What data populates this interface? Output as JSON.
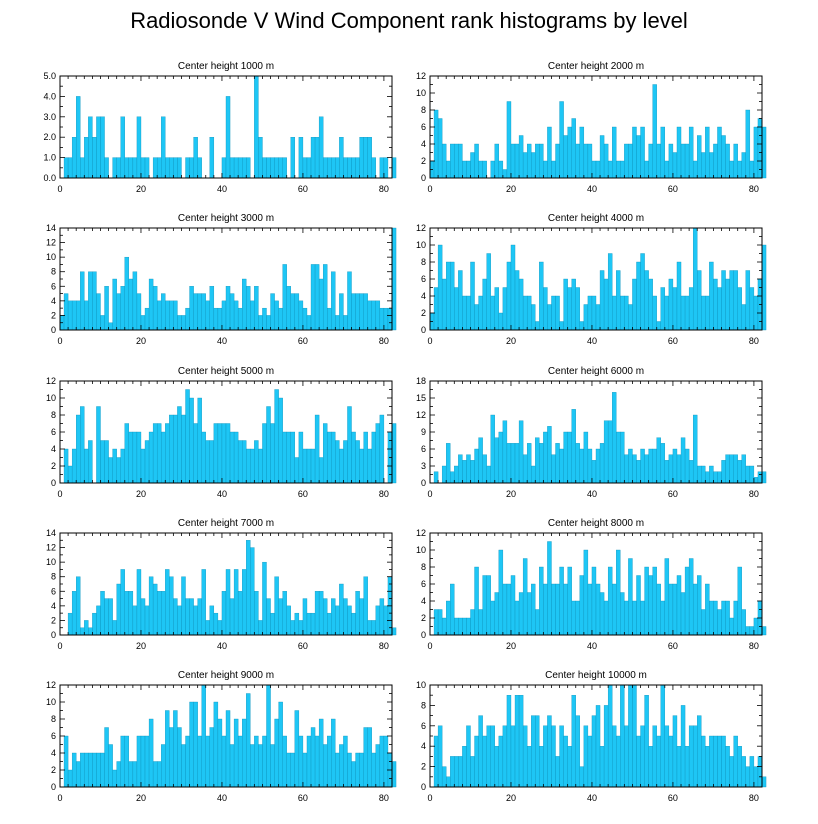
{
  "title": "Radiosonde V Wind Component rank histograms by level",
  "colors": {
    "bar": "#1ec6f5",
    "bar_edge": "#0a8fb8",
    "axis": "#000000"
  },
  "chart_data": [
    {
      "type": "bar",
      "title": "Center height 1000 m",
      "xlabel": "",
      "ylabel": "",
      "xlim": [
        0,
        82
      ],
      "ylim": [
        0,
        5.0
      ],
      "xticks": [
        0,
        20,
        40,
        60,
        80
      ],
      "yticks": [
        0.0,
        1.0,
        2.0,
        3.0,
        4.0,
        5.0
      ],
      "ytick_labels": [
        "0.0",
        "1.0",
        "2.0",
        "3.0",
        "4.0",
        "5.0"
      ],
      "values": [
        0,
        1,
        1,
        2,
        4,
        1,
        2,
        3,
        2,
        3,
        3,
        1,
        0,
        1,
        1,
        3,
        1,
        1,
        1,
        3,
        1,
        1,
        0,
        1,
        1,
        3,
        1,
        1,
        1,
        1,
        0,
        1,
        1,
        2,
        1,
        0,
        0,
        2,
        0,
        0,
        1,
        4,
        1,
        1,
        1,
        1,
        1,
        0,
        5,
        2,
        1,
        1,
        1,
        1,
        1,
        1,
        0,
        2,
        0,
        2,
        1,
        1,
        2,
        2,
        3,
        1,
        1,
        1,
        1,
        2,
        1,
        1,
        1,
        1,
        2,
        2,
        2,
        1,
        0,
        1,
        1,
        0,
        1
      ]
    },
    {
      "type": "bar",
      "title": "Center height 2000 m",
      "xlabel": "",
      "ylabel": "",
      "xlim": [
        0,
        82
      ],
      "ylim": [
        0,
        12
      ],
      "xticks": [
        0,
        20,
        40,
        60,
        80
      ],
      "yticks": [
        0,
        2,
        4,
        6,
        8,
        10,
        12
      ],
      "ytick_labels": [
        "0",
        "2",
        "4",
        "6",
        "8",
        "10",
        "12"
      ],
      "values": [
        2,
        8,
        7,
        4,
        2,
        4,
        4,
        4,
        2,
        2,
        3,
        4,
        2,
        2,
        0,
        2,
        4,
        2,
        1,
        9,
        4,
        4,
        5,
        3,
        4,
        3,
        4,
        4,
        2,
        6,
        2,
        4,
        9,
        5,
        6,
        7,
        4,
        6,
        4,
        4,
        2,
        2,
        5,
        4,
        2,
        6,
        2,
        2,
        4,
        4,
        6,
        5,
        6,
        2,
        4,
        11,
        4,
        6,
        2,
        4,
        3,
        6,
        4,
        4,
        6,
        2,
        5,
        3,
        6,
        3,
        4,
        6,
        5,
        4,
        2,
        4,
        2,
        3,
        8,
        2,
        6,
        7,
        6
      ]
    },
    {
      "type": "bar",
      "title": "Center height 3000 m",
      "xlabel": "",
      "ylabel": "",
      "xlim": [
        0,
        82
      ],
      "ylim": [
        0,
        14
      ],
      "xticks": [
        0,
        20,
        40,
        60,
        80
      ],
      "yticks": [
        0,
        2,
        4,
        6,
        8,
        10,
        12,
        14
      ],
      "ytick_labels": [
        "0",
        "2",
        "4",
        "6",
        "8",
        "10",
        "12",
        "14"
      ],
      "values": [
        2,
        5,
        4,
        4,
        4,
        8,
        4,
        8,
        8,
        5,
        2,
        6,
        1,
        7,
        5,
        6,
        10,
        7,
        8,
        5,
        2,
        3,
        7,
        6,
        4,
        5,
        4,
        4,
        4,
        2,
        2,
        3,
        6,
        5,
        5,
        5,
        4,
        6,
        3,
        3,
        4,
        6,
        5,
        4,
        3,
        7,
        6,
        4,
        6,
        2,
        3,
        2,
        5,
        4,
        3,
        9,
        6,
        5,
        5,
        4,
        3,
        2,
        9,
        9,
        7,
        9,
        3,
        8,
        2,
        5,
        2,
        8,
        5,
        5,
        5,
        5,
        4,
        4,
        4,
        3,
        3,
        3,
        14
      ]
    },
    {
      "type": "bar",
      "title": "Center height 4000 m",
      "xlabel": "",
      "ylabel": "",
      "xlim": [
        0,
        82
      ],
      "ylim": [
        0,
        12
      ],
      "xticks": [
        0,
        20,
        40,
        60,
        80
      ],
      "yticks": [
        0,
        2,
        4,
        6,
        8,
        10,
        12
      ],
      "ytick_labels": [
        "0",
        "2",
        "4",
        "6",
        "8",
        "10",
        "12"
      ],
      "values": [
        2,
        5,
        10,
        6,
        8,
        8,
        5,
        7,
        4,
        4,
        8,
        3,
        4,
        6,
        9,
        4,
        5,
        2,
        5,
        8,
        10,
        7,
        6,
        4,
        4,
        3,
        1,
        8,
        5,
        3,
        4,
        4,
        1,
        6,
        5,
        6,
        5,
        1,
        3,
        4,
        4,
        3,
        7,
        6,
        9,
        4,
        7,
        4,
        4,
        3,
        6,
        8,
        9,
        7,
        6,
        4,
        1,
        5,
        4,
        6,
        5,
        8,
        4,
        4,
        5,
        12,
        7,
        4,
        4,
        8,
        6,
        5,
        7,
        6,
        7,
        7,
        5,
        3,
        7,
        5,
        4,
        6,
        10
      ]
    },
    {
      "type": "bar",
      "title": "Center height 5000 m",
      "xlabel": "",
      "ylabel": "",
      "xlim": [
        0,
        82
      ],
      "ylim": [
        0,
        12
      ],
      "xticks": [
        0,
        20,
        40,
        60,
        80
      ],
      "yticks": [
        0,
        2,
        4,
        6,
        8,
        10,
        12
      ],
      "ytick_labels": [
        "0",
        "2",
        "4",
        "6",
        "8",
        "10",
        "12"
      ],
      "values": [
        0,
        4,
        2,
        4,
        8,
        9,
        4,
        5,
        0,
        9,
        5,
        5,
        3,
        4,
        3,
        4,
        7,
        6,
        6,
        6,
        4,
        5,
        6,
        7,
        7,
        6,
        7,
        8,
        8,
        9,
        8,
        11,
        10,
        7,
        10,
        6,
        5,
        5,
        7,
        7,
        7,
        7,
        6,
        6,
        5,
        5,
        4,
        4,
        5,
        4,
        7,
        9,
        7,
        11,
        10,
        6,
        6,
        6,
        3,
        6,
        4,
        4,
        4,
        8,
        3,
        7,
        6,
        6,
        5,
        4,
        5,
        9,
        6,
        5,
        4,
        6,
        4,
        6,
        7,
        8,
        0,
        6,
        7
      ]
    },
    {
      "type": "bar",
      "title": "Center height 6000 m",
      "xlabel": "",
      "ylabel": "",
      "xlim": [
        0,
        82
      ],
      "ylim": [
        0,
        18
      ],
      "xticks": [
        0,
        20,
        40,
        60,
        80
      ],
      "yticks": [
        0,
        3,
        6,
        9,
        12,
        15,
        18
      ],
      "ytick_labels": [
        "0",
        "3",
        "6",
        "9",
        "12",
        "15",
        "18"
      ],
      "values": [
        0,
        2,
        0,
        3,
        7,
        2,
        3,
        5,
        4,
        5,
        4,
        6,
        8,
        5,
        3,
        12,
        8,
        9,
        11,
        7,
        7,
        7,
        11,
        5,
        7,
        3,
        8,
        7,
        9,
        10,
        5,
        7,
        6,
        9,
        9,
        13,
        7,
        6,
        9,
        6,
        4,
        6,
        7,
        11,
        11,
        16,
        9,
        9,
        5,
        6,
        5,
        4,
        6,
        5,
        6,
        6,
        8,
        7,
        4,
        5,
        6,
        5,
        8,
        6,
        4,
        12,
        3,
        3,
        2,
        3,
        2,
        2,
        4,
        5,
        5,
        5,
        4,
        5,
        3,
        3,
        1,
        2,
        2
      ]
    },
    {
      "type": "bar",
      "title": "Center height 7000 m",
      "xlabel": "",
      "ylabel": "",
      "xlim": [
        0,
        82
      ],
      "ylim": [
        0,
        14
      ],
      "xticks": [
        0,
        20,
        40,
        60,
        80
      ],
      "yticks": [
        0,
        2,
        4,
        6,
        8,
        10,
        12,
        14
      ],
      "ytick_labels": [
        "0",
        "2",
        "4",
        "6",
        "8",
        "10",
        "12",
        "14"
      ],
      "values": [
        0,
        0,
        3,
        6,
        8,
        1,
        2,
        1,
        3,
        4,
        6,
        5,
        5,
        2,
        7,
        9,
        6,
        6,
        4,
        9,
        5,
        4,
        8,
        7,
        6,
        6,
        9,
        8,
        5,
        4,
        8,
        5,
        5,
        4,
        5,
        9,
        2,
        4,
        3,
        2,
        6,
        9,
        5,
        9,
        6,
        9,
        13,
        12,
        6,
        2,
        10,
        5,
        3,
        8,
        5,
        6,
        4,
        2,
        3,
        2,
        5,
        3,
        3,
        6,
        6,
        5,
        3,
        5,
        4,
        7,
        5,
        4,
        3,
        6,
        5,
        8,
        2,
        2,
        4,
        5,
        4,
        8,
        1
      ]
    },
    {
      "type": "bar",
      "title": "Center height 8000 m",
      "xlabel": "",
      "ylabel": "",
      "xlim": [
        0,
        82
      ],
      "ylim": [
        0,
        12
      ],
      "xticks": [
        0,
        20,
        40,
        60,
        80
      ],
      "yticks": [
        0,
        2,
        4,
        6,
        8,
        10,
        12
      ],
      "ytick_labels": [
        "0",
        "2",
        "4",
        "6",
        "8",
        "10",
        "12"
      ],
      "values": [
        0,
        3,
        3,
        2,
        4,
        6,
        2,
        2,
        2,
        2,
        3,
        8,
        3,
        7,
        7,
        4,
        5,
        10,
        6,
        6,
        7,
        4,
        5,
        9,
        5,
        6,
        3,
        8,
        6,
        11,
        6,
        6,
        8,
        6,
        8,
        4,
        4,
        7,
        10,
        6,
        8,
        6,
        5,
        4,
        8,
        6,
        10,
        5,
        4,
        9,
        4,
        7,
        4,
        8,
        7,
        8,
        6,
        4,
        9,
        6,
        6,
        7,
        5,
        8,
        9,
        6,
        7,
        3,
        6,
        4,
        4,
        3,
        4,
        4,
        2,
        4,
        8,
        3,
        1,
        1,
        2,
        4,
        1
      ]
    },
    {
      "type": "bar",
      "title": "Center height 9000 m",
      "xlabel": "",
      "ylabel": "",
      "xlim": [
        0,
        82
      ],
      "ylim": [
        0,
        12
      ],
      "xticks": [
        0,
        20,
        40,
        60,
        80
      ],
      "yticks": [
        0,
        2,
        4,
        6,
        8,
        10,
        12
      ],
      "ytick_labels": [
        "0",
        "2",
        "4",
        "6",
        "8",
        "10",
        "12"
      ],
      "values": [
        0,
        6,
        2,
        4,
        3,
        4,
        4,
        4,
        4,
        4,
        4,
        7,
        5,
        2,
        3,
        6,
        6,
        3,
        3,
        6,
        6,
        6,
        8,
        3,
        3,
        5,
        9,
        7,
        9,
        7,
        5,
        6,
        10,
        10,
        6,
        12,
        6,
        7,
        10,
        8,
        6,
        9,
        5,
        8,
        6,
        8,
        11,
        5,
        6,
        5,
        6,
        12,
        5,
        8,
        10,
        6,
        4,
        4,
        9,
        6,
        4,
        6,
        7,
        6,
        8,
        5,
        6,
        8,
        4,
        5,
        6,
        4,
        3,
        4,
        4,
        7,
        7,
        4,
        5,
        6,
        6,
        4,
        3
      ]
    },
    {
      "type": "bar",
      "title": "Center height 10000 m",
      "xlabel": "",
      "ylabel": "",
      "xlim": [
        0,
        82
      ],
      "ylim": [
        0,
        10
      ],
      "xticks": [
        0,
        20,
        40,
        60,
        80
      ],
      "yticks": [
        0,
        2,
        4,
        6,
        8,
        10
      ],
      "ytick_labels": [
        "0",
        "2",
        "4",
        "6",
        "8",
        "10"
      ],
      "values": [
        0,
        5,
        6,
        2,
        1,
        3,
        3,
        3,
        4,
        6,
        3,
        5,
        7,
        5,
        6,
        6,
        4,
        5,
        6,
        9,
        6,
        9,
        9,
        6,
        4,
        7,
        7,
        4,
        6,
        7,
        6,
        3,
        6,
        5,
        4,
        9,
        7,
        2,
        6,
        5,
        7,
        8,
        4,
        8,
        10,
        6,
        5,
        10,
        6,
        10,
        10,
        5,
        6,
        9,
        4,
        6,
        5,
        10,
        6,
        5,
        7,
        4,
        8,
        4,
        6,
        6,
        7,
        5,
        4,
        5,
        5,
        5,
        5,
        4,
        3,
        5,
        4,
        3,
        2,
        3,
        2,
        3,
        1
      ]
    }
  ]
}
